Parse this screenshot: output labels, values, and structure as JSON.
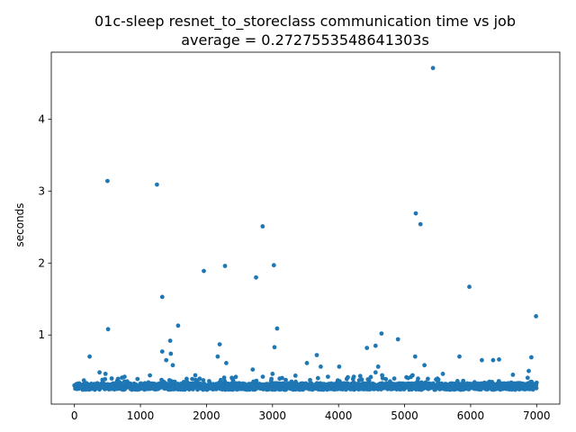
{
  "chart_data": {
    "type": "scatter",
    "title": "01c-sleep resnet_to_storeclass communication time vs job",
    "subtitle": "average = 0.2727553548641303s",
    "xlabel": "",
    "ylabel": "seconds",
    "xlim": [
      -350,
      7350
    ],
    "ylim": [
      0.04,
      4.93
    ],
    "xticks": [
      0,
      1000,
      2000,
      3000,
      4000,
      5000,
      6000,
      7000
    ],
    "xtick_labels": [
      "0",
      "1000",
      "2000",
      "3000",
      "4000",
      "5000",
      "6000",
      "7000"
    ],
    "yticks": [
      1,
      2,
      3,
      4
    ],
    "ytick_labels": [
      "1",
      "2",
      "3",
      "4"
    ],
    "grid": false,
    "marker_color": "#1f77b4",
    "n_jobs": 7000,
    "baseline_range": [
      0.24,
      0.33
    ],
    "points": [
      [
        500,
        3.14
      ],
      [
        1250,
        3.09
      ],
      [
        5430,
        4.71
      ],
      [
        5170,
        2.69
      ],
      [
        5240,
        2.54
      ],
      [
        2850,
        2.51
      ],
      [
        3020,
        1.97
      ],
      [
        2280,
        1.96
      ],
      [
        1960,
        1.89
      ],
      [
        2750,
        1.8
      ],
      [
        5980,
        1.67
      ],
      [
        1330,
        1.53
      ],
      [
        6990,
        1.26
      ],
      [
        1570,
        1.13
      ],
      [
        3070,
        1.09
      ],
      [
        510,
        1.08
      ],
      [
        4650,
        1.02
      ],
      [
        4900,
        0.94
      ],
      [
        1450,
        0.92
      ],
      [
        2200,
        0.87
      ],
      [
        3030,
        0.83
      ],
      [
        4430,
        0.82
      ],
      [
        4560,
        0.85
      ],
      [
        1330,
        0.77
      ],
      [
        1460,
        0.74
      ],
      [
        230,
        0.7
      ],
      [
        2170,
        0.7
      ],
      [
        3670,
        0.72
      ],
      [
        5160,
        0.7
      ],
      [
        5830,
        0.7
      ],
      [
        6920,
        0.69
      ],
      [
        6170,
        0.65
      ],
      [
        6340,
        0.65
      ],
      [
        6430,
        0.66
      ],
      [
        1390,
        0.65
      ],
      [
        2300,
        0.61
      ],
      [
        3520,
        0.61
      ],
      [
        1490,
        0.58
      ],
      [
        3730,
        0.56
      ],
      [
        4010,
        0.56
      ],
      [
        4600,
        0.56
      ],
      [
        5300,
        0.58
      ],
      [
        380,
        0.48
      ],
      [
        470,
        0.46
      ],
      [
        2700,
        0.52
      ],
      [
        4560,
        0.48
      ],
      [
        5580,
        0.46
      ],
      [
        6880,
        0.5
      ],
      [
        3000,
        0.46
      ],
      [
        4660,
        0.44
      ],
      [
        5120,
        0.44
      ],
      [
        760,
        0.42
      ],
      [
        1830,
        0.44
      ],
      [
        3840,
        0.42
      ],
      [
        4230,
        0.42
      ]
    ]
  }
}
